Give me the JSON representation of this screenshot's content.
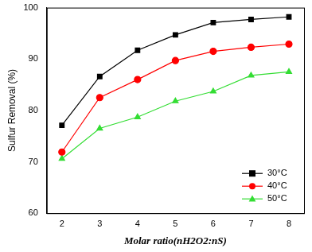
{
  "chart_data": {
    "type": "line",
    "x_label": "Molar ratio(nH2O2:nS)",
    "y_label": "Sulfur Removal (%)",
    "x": [
      2,
      3,
      4,
      5,
      6,
      7,
      8
    ],
    "series": [
      {
        "name": "30°C",
        "color": "#000000",
        "marker": "square",
        "values": [
          77.1,
          86.6,
          91.7,
          94.7,
          97.1,
          97.7,
          98.2
        ]
      },
      {
        "name": "40°C",
        "color": "#ff0000",
        "marker": "circle",
        "values": [
          71.9,
          82.5,
          86.0,
          89.7,
          91.5,
          92.3,
          92.9
        ]
      },
      {
        "name": "50°C",
        "color": "#33dd33",
        "marker": "triangle",
        "values": [
          70.6,
          76.5,
          78.7,
          81.8,
          83.7,
          86.8,
          87.5
        ]
      }
    ],
    "xlim": [
      1.6,
      8.4
    ],
    "xticks": [
      2,
      3,
      4,
      5,
      6,
      7,
      8
    ],
    "ylim": [
      60,
      100
    ],
    "yticks": [
      60,
      70,
      80,
      90,
      100
    ],
    "grid": false,
    "legend": "lower right"
  }
}
